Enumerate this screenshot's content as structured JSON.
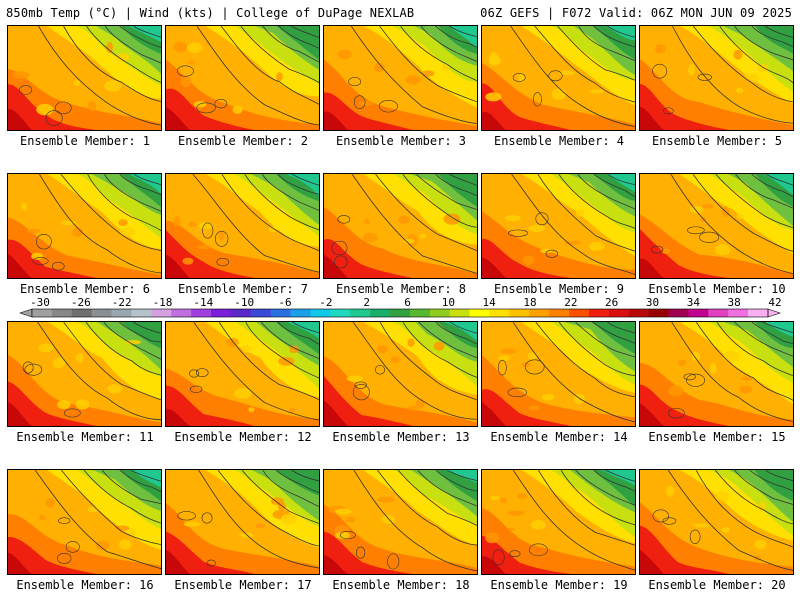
{
  "header": {
    "left": "850mb Temp (°C) | Wind (kts) | College of DuPage NEXLAB",
    "right": "06Z GEFS | F072 Valid: 06Z MON JUN 09 2025"
  },
  "panels": [
    {
      "label": "Ensemble Member: 1"
    },
    {
      "label": "Ensemble Member: 2"
    },
    {
      "label": "Ensemble Member: 3"
    },
    {
      "label": "Ensemble Member: 4"
    },
    {
      "label": "Ensemble Member: 5"
    },
    {
      "label": "Ensemble Member: 6"
    },
    {
      "label": "Ensemble Member: 7"
    },
    {
      "label": "Ensemble Member: 8"
    },
    {
      "label": "Ensemble Member: 9"
    },
    {
      "label": "Ensemble Member: 10"
    },
    {
      "label": "Ensemble Member: 11"
    },
    {
      "label": "Ensemble Member: 12"
    },
    {
      "label": "Ensemble Member: 13"
    },
    {
      "label": "Ensemble Member: 14"
    },
    {
      "label": "Ensemble Member: 15"
    },
    {
      "label": "Ensemble Member: 16"
    },
    {
      "label": "Ensemble Member: 17"
    },
    {
      "label": "Ensemble Member: 18"
    },
    {
      "label": "Ensemble Member: 19"
    },
    {
      "label": "Ensemble Member: 20"
    }
  ],
  "colorbar": {
    "tick_labels": [
      "-30",
      "-26",
      "-22",
      "-18",
      "-14",
      "-10",
      "-6",
      "-2",
      "2",
      "6",
      "10",
      "14",
      "18",
      "22",
      "26",
      "30",
      "34",
      "38",
      "42"
    ],
    "colors": [
      "#a0a0a0",
      "#888888",
      "#707070",
      "#8a8f94",
      "#9aa6b0",
      "#b8c2ca",
      "#d6a0e0",
      "#c070e0",
      "#a040e0",
      "#7a20d8",
      "#5a28c8",
      "#3a48d8",
      "#2a70e0",
      "#1aa0e8",
      "#10c8e8",
      "#20d8c0",
      "#20c890",
      "#18b068",
      "#30a040",
      "#58b830",
      "#90cc20",
      "#c8e010",
      "#ffff00",
      "#ffe000",
      "#ffc000",
      "#ffa000",
      "#ff8000",
      "#ff5000",
      "#f02010",
      "#d81010",
      "#b80808",
      "#980000",
      "#a00050",
      "#c00090",
      "#e040c0",
      "#f070e0",
      "#f8b0f0"
    ]
  }
}
